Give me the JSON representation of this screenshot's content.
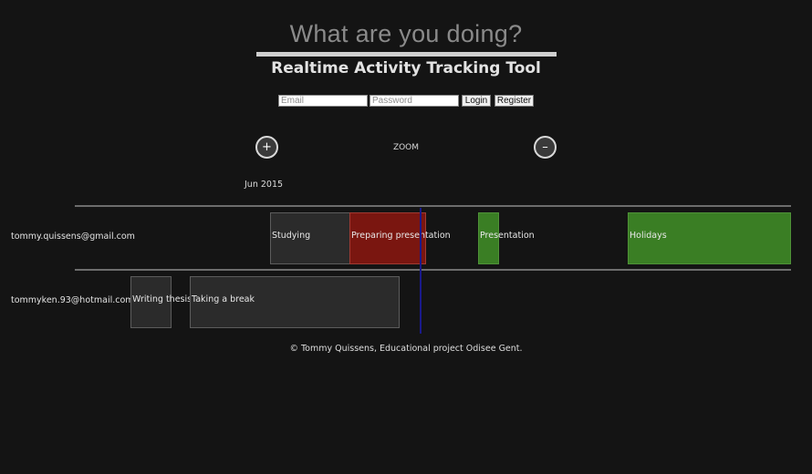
{
  "header": {
    "headline": "What are you doing?",
    "app_title": "Realtime Activity Tracking Tool"
  },
  "login": {
    "email_placeholder": "Email",
    "password_placeholder": "Password",
    "login_label": "Login",
    "register_label": "Register"
  },
  "zoom": {
    "zoom_in_label": "+",
    "zoom_out_label": "–",
    "label": "ZOOM"
  },
  "timeline": {
    "axis_label": "Jun 2015",
    "groups": [
      {
        "email": "tommy.quissens@gmail.com",
        "items": [
          {
            "label": "Studying",
            "style": "default"
          },
          {
            "label": "Preparing presentation",
            "style": "red"
          },
          {
            "label": "Presentation",
            "style": "green"
          },
          {
            "label": "Holidays",
            "style": "green"
          }
        ]
      },
      {
        "email": "tommyken.93@hotmail.com",
        "items": [
          {
            "label": "Writing thesis",
            "style": "default"
          },
          {
            "label": "Taking a break",
            "style": "default"
          }
        ]
      }
    ],
    "colors": {
      "green": "#3a7e24",
      "red": "#7a1610",
      "default": "#2b2b2b",
      "current_time": "#1a1a8c"
    }
  },
  "footer": {
    "text": "© Tommy Quissens, Educational project Odisee Gent."
  }
}
